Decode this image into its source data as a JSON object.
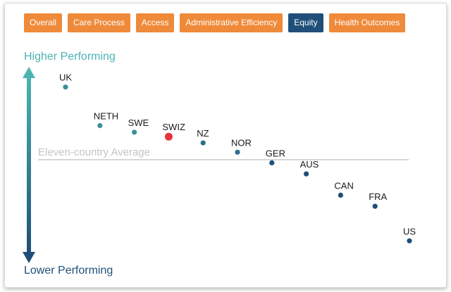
{
  "tabs": [
    {
      "label": "Overall",
      "active": false
    },
    {
      "label": "Care Process",
      "active": false
    },
    {
      "label": "Access",
      "active": false
    },
    {
      "label": "Administrative Efficiency",
      "active": false
    },
    {
      "label": "Equity",
      "active": true
    },
    {
      "label": "Health Outcomes",
      "active": false
    }
  ],
  "colors": {
    "tab_orange": "#ef8a3a",
    "tab_active": "#1f4f78",
    "arrow_top": "#4cb3b3",
    "arrow_bottom": "#1f4f78",
    "highlight": "#e8323c"
  },
  "chart_data": {
    "type": "scatter",
    "title": "",
    "ylabel_top": "Higher Performing",
    "ylabel_bottom": "Lower Performing",
    "average_label": "Eleven-country Average",
    "average_value": 0,
    "grid": false,
    "points": [
      {
        "label": "UK",
        "value": 1.64,
        "color": "#3a8f9a",
        "highlight": false
      },
      {
        "label": "NETH",
        "value": 0.77,
        "color": "#3a8f9a",
        "highlight": false
      },
      {
        "label": "SWE",
        "value": 0.62,
        "color": "#3a8f9a",
        "highlight": false
      },
      {
        "label": "SWIZ",
        "value": 0.52,
        "color": "#e8323c",
        "highlight": true
      },
      {
        "label": "NZ",
        "value": 0.38,
        "color": "#2d6f8a",
        "highlight": false
      },
      {
        "label": "NOR",
        "value": 0.17,
        "color": "#2d6f8a",
        "highlight": false
      },
      {
        "label": "GER",
        "value": -0.07,
        "color": "#1f4f78",
        "highlight": false
      },
      {
        "label": "AUS",
        "value": -0.32,
        "color": "#1f4f78",
        "highlight": false
      },
      {
        "label": "CAN",
        "value": -0.8,
        "color": "#1f4f78",
        "highlight": false
      },
      {
        "label": "FRA",
        "value": -1.05,
        "color": "#1f4f78",
        "highlight": false
      },
      {
        "label": "US",
        "value": -1.83,
        "color": "#1f4f78",
        "highlight": false
      }
    ]
  }
}
